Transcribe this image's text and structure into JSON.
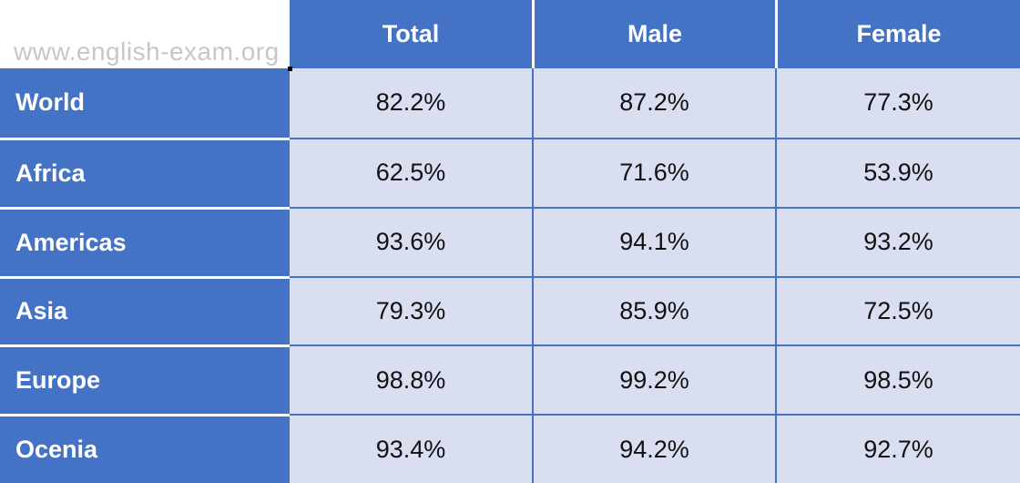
{
  "watermark": "www.english-exam.org",
  "colors": {
    "accent_blue": "#4472c4",
    "band_lavender": "#d9def1",
    "header_text": "#ffffff",
    "data_text": "#111111",
    "watermark_gray": "#c7c7c7"
  },
  "table": {
    "columns": [
      "Total",
      "Male",
      "Female"
    ],
    "rows": [
      {
        "label": "World",
        "values": [
          "82.2%",
          "87.2%",
          "77.3%"
        ]
      },
      {
        "label": "Africa",
        "values": [
          "62.5%",
          "71.6%",
          "53.9%"
        ]
      },
      {
        "label": "Americas",
        "values": [
          "93.6%",
          "94.1%",
          "93.2%"
        ]
      },
      {
        "label": "Asia",
        "values": [
          "79.3%",
          "85.9%",
          "72.5%"
        ]
      },
      {
        "label": "Europe",
        "values": [
          "98.8%",
          "99.2%",
          "98.5%"
        ]
      },
      {
        "label": "Ocenia",
        "values": [
          "93.4%",
          "94.2%",
          "92.7%"
        ]
      }
    ]
  },
  "chart_data": {
    "type": "table",
    "columns": [
      "Total",
      "Male",
      "Female"
    ],
    "row_headers": [
      "World",
      "Africa",
      "Americas",
      "Asia",
      "Europe",
      "Ocenia"
    ],
    "rows": [
      [
        82.2,
        87.2,
        77.3
      ],
      [
        62.5,
        71.6,
        53.9
      ],
      [
        93.6,
        94.1,
        93.2
      ],
      [
        79.3,
        85.9,
        72.5
      ],
      [
        98.8,
        99.2,
        98.5
      ],
      [
        93.4,
        94.2,
        92.7
      ]
    ],
    "unit": "%"
  }
}
